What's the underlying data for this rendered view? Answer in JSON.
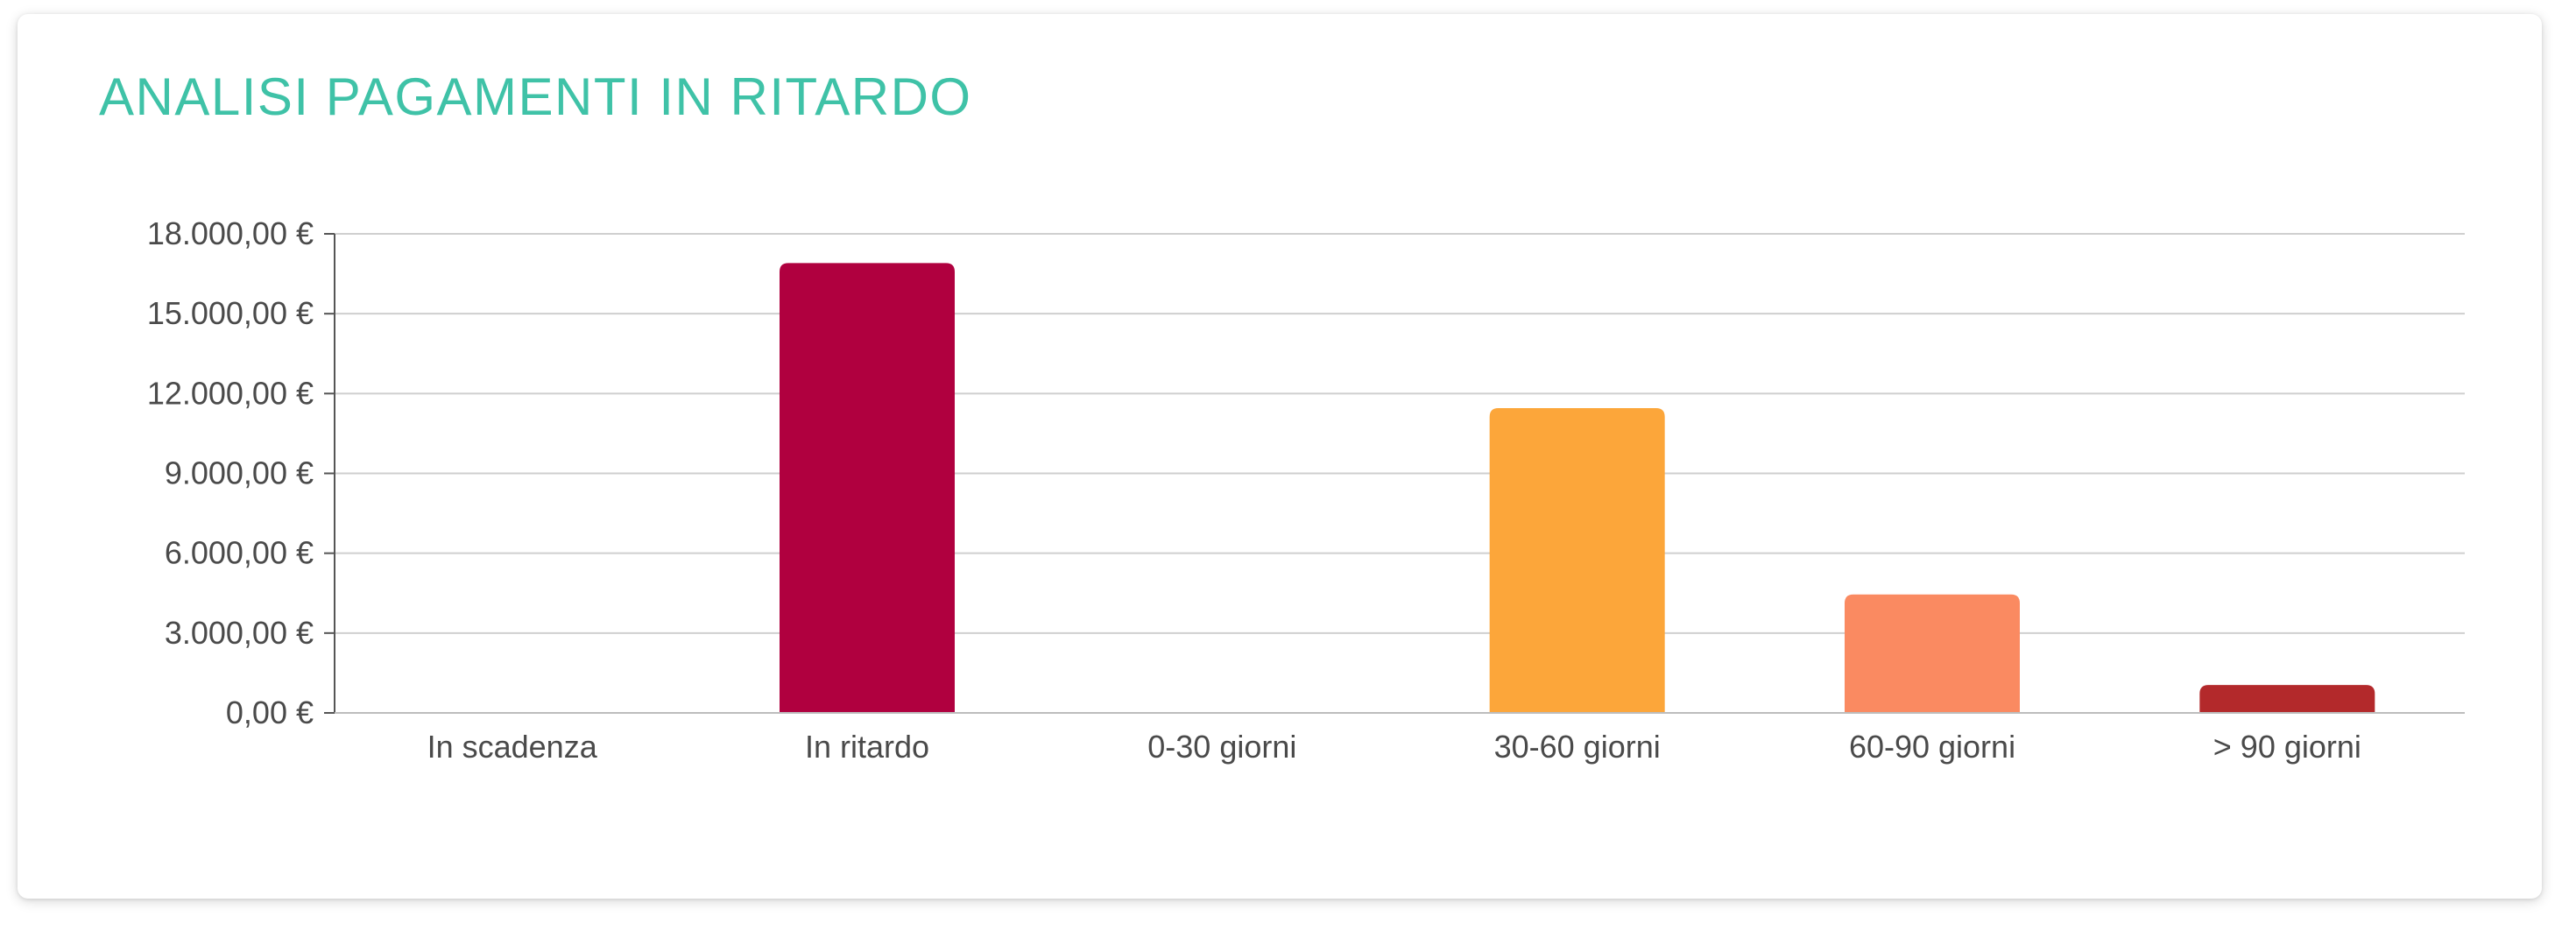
{
  "title": "ANALISI PAGAMENTI IN RITARDO",
  "chart_data": {
    "type": "bar",
    "title": "ANALISI PAGAMENTI IN RITARDO",
    "xlabel": "",
    "ylabel": "",
    "categories": [
      "In scadenza",
      "In ritardo",
      "0-30 giorni",
      "30-60 giorni",
      "60-90 giorni",
      "> 90 giorni"
    ],
    "values": [
      0,
      16900,
      0,
      11450,
      4450,
      1050
    ],
    "colors": [
      "#b0003f",
      "#b0003f",
      "#b0003f",
      "#fca63a",
      "#fa8a61",
      "#b3292b"
    ],
    "ylim": [
      0,
      18000
    ],
    "yticks": [
      0,
      3000,
      6000,
      9000,
      12000,
      15000,
      18000
    ],
    "ytick_labels": [
      "0,00 €",
      "3.000,00 €",
      "6.000,00 €",
      "9.000,00 €",
      "12.000,00 €",
      "15.000,00 €",
      "18.000,00 €"
    ],
    "grid": true,
    "legend": "none",
    "gridline_color": "#cfcfcf",
    "axis_color": "#555555",
    "label_color": "#4a4a4a"
  }
}
